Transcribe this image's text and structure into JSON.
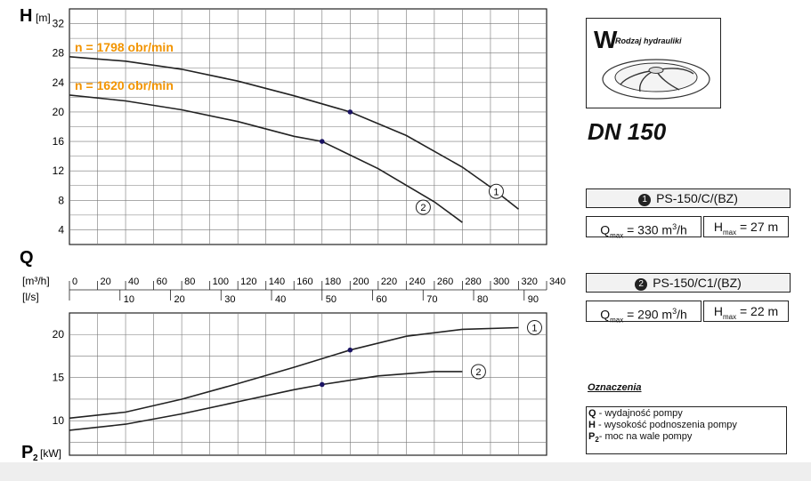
{
  "chart_data": [
    {
      "type": "line",
      "title": "",
      "ylabel_symbol": "H",
      "ylabel_unit": "[m]",
      "xlabel": "",
      "xlim": [
        0,
        340
      ],
      "ylim": [
        2,
        34
      ],
      "yticks": [
        4,
        8,
        12,
        16,
        20,
        24,
        28,
        32
      ],
      "grid": true,
      "series": [
        {
          "name": "n = 1798 obr/min",
          "curve_label": "1",
          "x": [
            0,
            40,
            80,
            120,
            160,
            200,
            240,
            280,
            300,
            320
          ],
          "y": [
            27.5,
            26.9,
            25.8,
            24.2,
            22.2,
            20.0,
            16.8,
            12.5,
            9.8,
            6.8
          ],
          "marker": {
            "x": 200,
            "y": 20
          }
        },
        {
          "name": "n = 1620 obr/min",
          "curve_label": "2",
          "x": [
            0,
            40,
            80,
            120,
            160,
            180,
            220,
            260,
            280
          ],
          "y": [
            22.3,
            21.5,
            20.3,
            18.7,
            16.7,
            16.0,
            12.3,
            7.8,
            5.0
          ],
          "marker": {
            "x": 180,
            "y": 16
          }
        }
      ]
    },
    {
      "type": "line",
      "title": "",
      "ylabel_symbol": "P",
      "ylabel_sub": "2",
      "ylabel_unit": "[kW]",
      "xlim": [
        0,
        340
      ],
      "ylim": [
        6,
        22.5
      ],
      "yticks": [
        10,
        15,
        20
      ],
      "grid": true,
      "series": [
        {
          "curve_label": "1",
          "x": [
            0,
            40,
            80,
            120,
            160,
            200,
            240,
            280,
            320
          ],
          "y": [
            10.3,
            11.0,
            12.5,
            14.3,
            16.2,
            18.2,
            19.8,
            20.6,
            20.8
          ],
          "marker": {
            "x": 200,
            "y": 18.2
          }
        },
        {
          "curve_label": "2",
          "x": [
            0,
            40,
            80,
            120,
            160,
            180,
            220,
            260,
            280
          ],
          "y": [
            8.9,
            9.6,
            10.8,
            12.2,
            13.6,
            14.2,
            15.2,
            15.7,
            15.7
          ],
          "marker": {
            "x": 180,
            "y": 14.2
          }
        }
      ]
    }
  ],
  "q_axis": {
    "symbol": "Q",
    "unit_m3h": "[m³/h]",
    "unit_ls": "[l/s]",
    "m3h_ticks": [
      0,
      20,
      40,
      60,
      80,
      100,
      120,
      140,
      160,
      180,
      200,
      220,
      240,
      260,
      280,
      300,
      320,
      340
    ],
    "ls_ticks": [
      10,
      20,
      30,
      40,
      50,
      60,
      70,
      80,
      90
    ]
  },
  "hydraulics_box": {
    "letter": "W",
    "text": "Rodzaj hydrauliki"
  },
  "dn_label": "DN 150",
  "models": [
    {
      "num": "1",
      "name": "PS-150/C/(BZ)",
      "qmax": "= 330 m",
      "qmax_unit": "/h",
      "hmax": "= 27 m"
    },
    {
      "num": "2",
      "name": "PS-150/C1/(BZ)",
      "qmax": "= 290 m",
      "qmax_unit": "/h",
      "hmax": "= 22 m"
    }
  ],
  "spec_labels": {
    "q": "Q",
    "q_sub": "max",
    "h": "H",
    "h_sub": "max",
    "sup3": "3"
  },
  "legend": {
    "title": "Oznaczenia",
    "items": [
      {
        "sym": "Q",
        "sub": "",
        "text": "- wydajność pompy"
      },
      {
        "sym": "H",
        "sub": "",
        "text": "- wysokość podnoszenia pompy"
      },
      {
        "sym": "P",
        "sub": "2",
        "text": "- moc na wale pompy"
      }
    ]
  },
  "colors": {
    "curve": "#222222",
    "label": "#f29400",
    "marker": "#1b1464",
    "grid": "#777777"
  }
}
